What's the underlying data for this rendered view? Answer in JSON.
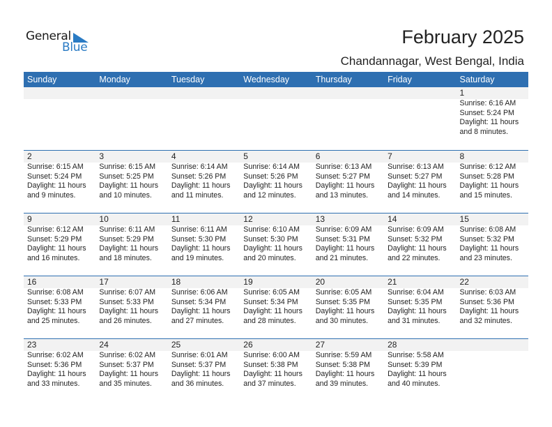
{
  "logo": {
    "text_general": "General",
    "text_blue": "Blue",
    "accent": "#2a7bc4"
  },
  "header": {
    "title": "February 2025",
    "location": "Chandannagar, West Bengal, India"
  },
  "colors": {
    "header_bg": "#2e6fb1",
    "daynum_band": "#f2f2f2"
  },
  "weekdays": [
    "Sunday",
    "Monday",
    "Tuesday",
    "Wednesday",
    "Thursday",
    "Friday",
    "Saturday"
  ],
  "weeks": [
    [
      null,
      null,
      null,
      null,
      null,
      null,
      {
        "day": "1",
        "sunrise": "Sunrise: 6:16 AM",
        "sunset": "Sunset: 5:24 PM",
        "daylight": "Daylight: 11 hours",
        "minutes": "and 8 minutes."
      }
    ],
    [
      {
        "day": "2",
        "sunrise": "Sunrise: 6:15 AM",
        "sunset": "Sunset: 5:24 PM",
        "daylight": "Daylight: 11 hours",
        "minutes": "and 9 minutes."
      },
      {
        "day": "3",
        "sunrise": "Sunrise: 6:15 AM",
        "sunset": "Sunset: 5:25 PM",
        "daylight": "Daylight: 11 hours",
        "minutes": "and 10 minutes."
      },
      {
        "day": "4",
        "sunrise": "Sunrise: 6:14 AM",
        "sunset": "Sunset: 5:26 PM",
        "daylight": "Daylight: 11 hours",
        "minutes": "and 11 minutes."
      },
      {
        "day": "5",
        "sunrise": "Sunrise: 6:14 AM",
        "sunset": "Sunset: 5:26 PM",
        "daylight": "Daylight: 11 hours",
        "minutes": "and 12 minutes."
      },
      {
        "day": "6",
        "sunrise": "Sunrise: 6:13 AM",
        "sunset": "Sunset: 5:27 PM",
        "daylight": "Daylight: 11 hours",
        "minutes": "and 13 minutes."
      },
      {
        "day": "7",
        "sunrise": "Sunrise: 6:13 AM",
        "sunset": "Sunset: 5:27 PM",
        "daylight": "Daylight: 11 hours",
        "minutes": "and 14 minutes."
      },
      {
        "day": "8",
        "sunrise": "Sunrise: 6:12 AM",
        "sunset": "Sunset: 5:28 PM",
        "daylight": "Daylight: 11 hours",
        "minutes": "and 15 minutes."
      }
    ],
    [
      {
        "day": "9",
        "sunrise": "Sunrise: 6:12 AM",
        "sunset": "Sunset: 5:29 PM",
        "daylight": "Daylight: 11 hours",
        "minutes": "and 16 minutes."
      },
      {
        "day": "10",
        "sunrise": "Sunrise: 6:11 AM",
        "sunset": "Sunset: 5:29 PM",
        "daylight": "Daylight: 11 hours",
        "minutes": "and 18 minutes."
      },
      {
        "day": "11",
        "sunrise": "Sunrise: 6:11 AM",
        "sunset": "Sunset: 5:30 PM",
        "daylight": "Daylight: 11 hours",
        "minutes": "and 19 minutes."
      },
      {
        "day": "12",
        "sunrise": "Sunrise: 6:10 AM",
        "sunset": "Sunset: 5:30 PM",
        "daylight": "Daylight: 11 hours",
        "minutes": "and 20 minutes."
      },
      {
        "day": "13",
        "sunrise": "Sunrise: 6:09 AM",
        "sunset": "Sunset: 5:31 PM",
        "daylight": "Daylight: 11 hours",
        "minutes": "and 21 minutes."
      },
      {
        "day": "14",
        "sunrise": "Sunrise: 6:09 AM",
        "sunset": "Sunset: 5:32 PM",
        "daylight": "Daylight: 11 hours",
        "minutes": "and 22 minutes."
      },
      {
        "day": "15",
        "sunrise": "Sunrise: 6:08 AM",
        "sunset": "Sunset: 5:32 PM",
        "daylight": "Daylight: 11 hours",
        "minutes": "and 23 minutes."
      }
    ],
    [
      {
        "day": "16",
        "sunrise": "Sunrise: 6:08 AM",
        "sunset": "Sunset: 5:33 PM",
        "daylight": "Daylight: 11 hours",
        "minutes": "and 25 minutes."
      },
      {
        "day": "17",
        "sunrise": "Sunrise: 6:07 AM",
        "sunset": "Sunset: 5:33 PM",
        "daylight": "Daylight: 11 hours",
        "minutes": "and 26 minutes."
      },
      {
        "day": "18",
        "sunrise": "Sunrise: 6:06 AM",
        "sunset": "Sunset: 5:34 PM",
        "daylight": "Daylight: 11 hours",
        "minutes": "and 27 minutes."
      },
      {
        "day": "19",
        "sunrise": "Sunrise: 6:05 AM",
        "sunset": "Sunset: 5:34 PM",
        "daylight": "Daylight: 11 hours",
        "minutes": "and 28 minutes."
      },
      {
        "day": "20",
        "sunrise": "Sunrise: 6:05 AM",
        "sunset": "Sunset: 5:35 PM",
        "daylight": "Daylight: 11 hours",
        "minutes": "and 30 minutes."
      },
      {
        "day": "21",
        "sunrise": "Sunrise: 6:04 AM",
        "sunset": "Sunset: 5:35 PM",
        "daylight": "Daylight: 11 hours",
        "minutes": "and 31 minutes."
      },
      {
        "day": "22",
        "sunrise": "Sunrise: 6:03 AM",
        "sunset": "Sunset: 5:36 PM",
        "daylight": "Daylight: 11 hours",
        "minutes": "and 32 minutes."
      }
    ],
    [
      {
        "day": "23",
        "sunrise": "Sunrise: 6:02 AM",
        "sunset": "Sunset: 5:36 PM",
        "daylight": "Daylight: 11 hours",
        "minutes": "and 33 minutes."
      },
      {
        "day": "24",
        "sunrise": "Sunrise: 6:02 AM",
        "sunset": "Sunset: 5:37 PM",
        "daylight": "Daylight: 11 hours",
        "minutes": "and 35 minutes."
      },
      {
        "day": "25",
        "sunrise": "Sunrise: 6:01 AM",
        "sunset": "Sunset: 5:37 PM",
        "daylight": "Daylight: 11 hours",
        "minutes": "and 36 minutes."
      },
      {
        "day": "26",
        "sunrise": "Sunrise: 6:00 AM",
        "sunset": "Sunset: 5:38 PM",
        "daylight": "Daylight: 11 hours",
        "minutes": "and 37 minutes."
      },
      {
        "day": "27",
        "sunrise": "Sunrise: 5:59 AM",
        "sunset": "Sunset: 5:38 PM",
        "daylight": "Daylight: 11 hours",
        "minutes": "and 39 minutes."
      },
      {
        "day": "28",
        "sunrise": "Sunrise: 5:58 AM",
        "sunset": "Sunset: 5:39 PM",
        "daylight": "Daylight: 11 hours",
        "minutes": "and 40 minutes."
      },
      null
    ]
  ]
}
